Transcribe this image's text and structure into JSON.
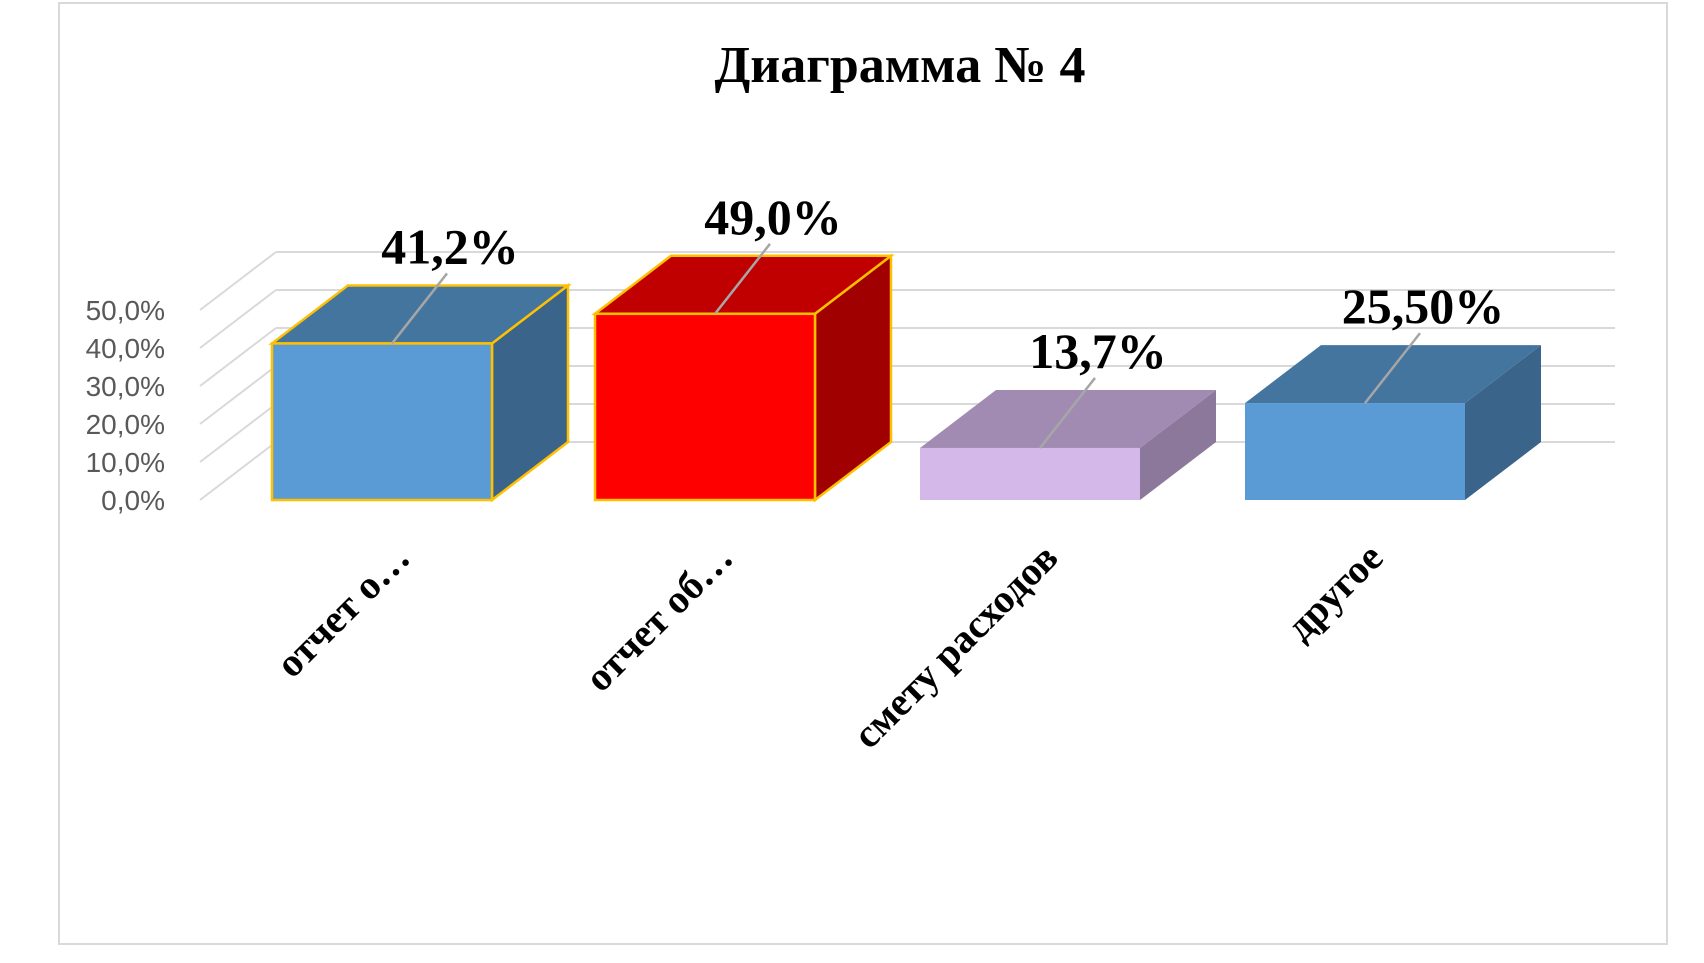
{
  "chart_data": {
    "type": "bar",
    "title": "Диаграмма № 4",
    "xlabel": "",
    "ylabel": "",
    "categories": [
      "отчет о…",
      "отчет об…",
      "смету расходов",
      "другое"
    ],
    "values": [
      41.2,
      49.0,
      13.7,
      25.5
    ],
    "data_labels": [
      "41,2%",
      "49,0%",
      "13,7%",
      "25,50%"
    ],
    "y_ticks": [
      "0,0%",
      "10,0%",
      "20,0%",
      "30,0%",
      "40,0%",
      "50,0%"
    ],
    "ylim": [
      0,
      50
    ],
    "grid": true,
    "legend": "none",
    "bar_colors": [
      {
        "front": "#5b9bd5",
        "top": "#44759f",
        "side": "#3a6489",
        "outline": "#ffc000"
      },
      {
        "front": "#ff0000",
        "top": "#c00000",
        "side": "#a00000",
        "outline": "#ffc000"
      },
      {
        "front": "#d5b8ea",
        "top": "#a18bb3",
        "side": "#8b789b",
        "outline": "none"
      },
      {
        "front": "#5b9bd5",
        "top": "#44759f",
        "side": "#3a6489",
        "outline": "none"
      }
    ]
  }
}
